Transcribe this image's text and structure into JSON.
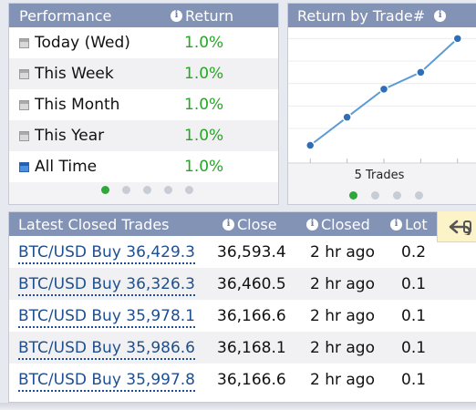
{
  "performance": {
    "header_title": "Performance",
    "header_return": "Return",
    "rows": [
      {
        "label": "Today (Wed)",
        "value": "1.0%",
        "active": false
      },
      {
        "label": "This Week",
        "value": "1.0%",
        "active": false
      },
      {
        "label": "This Month",
        "value": "1.0%",
        "active": false
      },
      {
        "label": "This Year",
        "value": "1.0%",
        "active": false
      },
      {
        "label": "All Time",
        "value": "1.0%",
        "active": true
      }
    ],
    "pager": {
      "count": 5,
      "active_index": 0
    }
  },
  "return_chart": {
    "header_title": "Return by Trade#",
    "caption": "5 Trades",
    "pager": {
      "count": 4,
      "active_index": 0
    },
    "colors": {
      "line": "#5b9bd5",
      "point": "#2f6fb8"
    }
  },
  "chart_data": {
    "type": "line",
    "title": "Return by Trade#",
    "xlabel": "5 Trades",
    "ylabel": "",
    "x": [
      1,
      2,
      3,
      4,
      5
    ],
    "series": [
      {
        "values": [
          0.05,
          0.3,
          0.55,
          0.7,
          1.0
        ]
      }
    ],
    "xlim": [
      0.4,
      5.6
    ],
    "ylim": [
      -0.1,
      1.1
    ],
    "grid": true,
    "legend": "none"
  },
  "trades": {
    "header_title": "Latest Closed Trades",
    "col_close": "Close",
    "col_closed": "Closed",
    "col_lot": "Lot",
    "rows": [
      {
        "trade": "BTC/USD Buy 36,429.3",
        "close": "36,593.4",
        "closed": "2 hr ago",
        "lot": "0.2"
      },
      {
        "trade": "BTC/USD Buy 36,326.3",
        "close": "36,460.5",
        "closed": "2 hr ago",
        "lot": "0.1"
      },
      {
        "trade": "BTC/USD Buy 35,978.1",
        "close": "36,166.6",
        "closed": "2 hr ago",
        "lot": "0.1"
      },
      {
        "trade": "BTC/USD Buy 35,986.6",
        "close": "36,168.1",
        "closed": "2 hr ago",
        "lot": "0.1"
      },
      {
        "trade": "BTC/USD Buy 35,997.8",
        "close": "36,166.6",
        "closed": "2 hr ago",
        "lot": "0.1"
      }
    ]
  },
  "icons": {
    "info": "info-icon",
    "calendar": "calendar-icon",
    "back": "back-arrow-icon"
  }
}
